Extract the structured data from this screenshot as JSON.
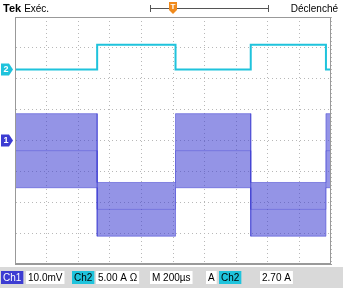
{
  "chart_data": {
    "type": "line",
    "header": [
      "Tek",
      "Exéc.",
      "Déclenché"
    ],
    "x": [
      0,
      520,
      520,
      1016,
      1016,
      1492,
      1492,
      1968,
      1968,
      2000
    ],
    "xlim": [
      0,
      2000
    ],
    "xticks": [
      0,
      200,
      400,
      600,
      800,
      1000,
      1200,
      1400,
      1600,
      1800,
      2000
    ],
    "ylim": [
      -4,
      4
    ],
    "yticks": [
      -4,
      -3,
      -2,
      -1,
      0,
      1,
      2,
      3,
      4
    ],
    "grid": true,
    "tick_labels": false,
    "series": [
      {
        "name": "Ch2",
        "color": "#1fc3dc",
        "marker_label": "2",
        "level": 2.3,
        "values": [
          2.3,
          2.3,
          3.1,
          3.1,
          2.3,
          2.3,
          3.1,
          3.1,
          2.3,
          2.3
        ]
      },
      {
        "name": "Ch1",
        "color": "#3c3cd2",
        "marker_label": "1",
        "level": 0,
        "values": [
          -0.33,
          -0.33,
          -2.23,
          -2.23,
          -0.33,
          -0.33,
          -2.23,
          -2.23,
          -0.33,
          -0.33
        ],
        "spread": [
          1.2,
          1.2,
          0.87,
          0.87,
          1.2,
          1.2,
          0.87,
          0.87,
          1.2,
          1.2
        ]
      }
    ],
    "trigger": {
      "label": "T",
      "value": 1000
    },
    "footer": [
      "Ch1",
      "10.0mV",
      "Ch2",
      "5.00 A Ω",
      "M 200µs",
      "A",
      "Ch2",
      "2.70 A"
    ]
  }
}
